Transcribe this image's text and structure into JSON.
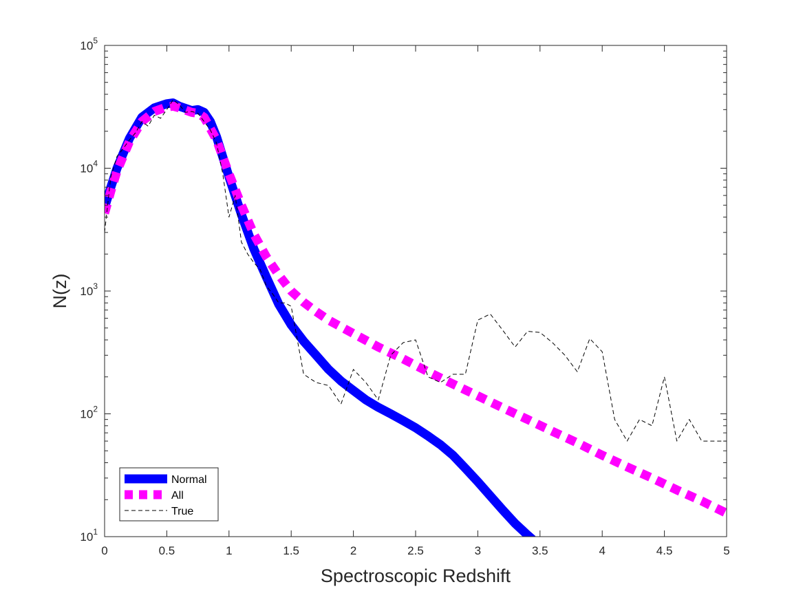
{
  "chart_data": {
    "type": "line",
    "title": "",
    "xlabel": "Spectroscopic Redshift",
    "ylabel": "N(z)",
    "xlim": [
      0,
      5
    ],
    "ylim": [
      10,
      100000
    ],
    "yscale": "log",
    "grid": false,
    "legend_position": "bottom-left",
    "x_ticks": [
      {
        "value": 0,
        "label": "0"
      },
      {
        "value": 0.5,
        "label": "0.5"
      },
      {
        "value": 1,
        "label": "1"
      },
      {
        "value": 1.5,
        "label": "1.5"
      },
      {
        "value": 2,
        "label": "2"
      },
      {
        "value": 2.5,
        "label": "2.5"
      },
      {
        "value": 3,
        "label": "3"
      },
      {
        "value": 3.5,
        "label": "3.5"
      },
      {
        "value": 4,
        "label": "4"
      },
      {
        "value": 4.5,
        "label": "4.5"
      },
      {
        "value": 5,
        "label": "5"
      }
    ],
    "y_ticks": [
      {
        "value": 10,
        "base": "10",
        "exp": "1"
      },
      {
        "value": 100,
        "base": "10",
        "exp": "2"
      },
      {
        "value": 1000,
        "base": "10",
        "exp": "3"
      },
      {
        "value": 10000,
        "base": "10",
        "exp": "4"
      },
      {
        "value": 100000,
        "base": "10",
        "exp": "5"
      }
    ],
    "series": [
      {
        "name": "Normal",
        "style": "solid-thick",
        "color": "#0000ff",
        "x": [
          0,
          0.05,
          0.1,
          0.2,
          0.3,
          0.4,
          0.5,
          0.55,
          0.6,
          0.7,
          0.75,
          0.8,
          0.85,
          0.9,
          1.0,
          1.1,
          1.2,
          1.3,
          1.4,
          1.5,
          1.6,
          1.7,
          1.8,
          1.9,
          2.0,
          2.1,
          2.2,
          2.3,
          2.4,
          2.5,
          2.6,
          2.7,
          2.8,
          2.9,
          3.0,
          3.1,
          3.2,
          3.3,
          3.4,
          3.44
        ],
        "y": [
          4800,
          7000,
          10000,
          17500,
          26000,
          31000,
          33500,
          34000,
          32000,
          29500,
          30000,
          28500,
          24000,
          18000,
          8500,
          4200,
          2200,
          1300,
          780,
          530,
          390,
          300,
          230,
          185,
          155,
          130,
          113,
          100,
          88,
          77,
          66,
          56,
          46,
          36,
          28,
          21.5,
          16.5,
          12.8,
          10.3,
          9.5
        ]
      },
      {
        "name": "All",
        "style": "dashed-thick",
        "color": "#ff00ff",
        "x": [
          0,
          0.05,
          0.1,
          0.2,
          0.3,
          0.4,
          0.5,
          0.55,
          0.6,
          0.7,
          0.75,
          0.8,
          0.9,
          1.0,
          1.1,
          1.2,
          1.3,
          1.4,
          1.5,
          1.6,
          1.7,
          1.8,
          2.0,
          2.2,
          2.4,
          2.6,
          2.8,
          3.0,
          3.2,
          3.4,
          3.6,
          3.8,
          4.0,
          4.2,
          4.4,
          4.6,
          4.8,
          5.0
        ],
        "y": [
          4300,
          6500,
          9500,
          16500,
          24000,
          29000,
          31500,
          32000,
          31000,
          28500,
          28000,
          26000,
          17000,
          9000,
          5000,
          2900,
          1900,
          1350,
          1000,
          810,
          680,
          580,
          450,
          350,
          280,
          220,
          175,
          140,
          112,
          90,
          72,
          58,
          46,
          37,
          30,
          24,
          19.5,
          15.5
        ]
      },
      {
        "name": "True",
        "style": "dashed-thin",
        "color": "#000000",
        "x": [
          0,
          0.05,
          0.1,
          0.15,
          0.2,
          0.25,
          0.3,
          0.35,
          0.4,
          0.45,
          0.5,
          0.55,
          0.6,
          0.65,
          0.7,
          0.75,
          0.8,
          0.85,
          0.9,
          0.95,
          1.0,
          1.05,
          1.1,
          1.15,
          1.2,
          1.25,
          1.3,
          1.35,
          1.4,
          1.45,
          1.5,
          1.6,
          1.7,
          1.8,
          1.9,
          2.0,
          2.1,
          2.2,
          2.3,
          2.4,
          2.5,
          2.6,
          2.7,
          2.8,
          2.9,
          3.0,
          3.1,
          3.2,
          3.3,
          3.4,
          3.5,
          3.6,
          3.7,
          3.8,
          3.9,
          4.0,
          4.1,
          4.2,
          4.3,
          4.4,
          4.5,
          4.6,
          4.7,
          4.8,
          4.9,
          5.0
        ],
        "y": [
          3000,
          8500,
          12500,
          14500,
          17000,
          19500,
          24000,
          22000,
          27000,
          25500,
          30000,
          36000,
          33000,
          28500,
          29000,
          28000,
          24000,
          20500,
          16000,
          9000,
          4000,
          6000,
          2500,
          2000,
          1700,
          1500,
          1100,
          950,
          800,
          800,
          750,
          210,
          180,
          170,
          120,
          230,
          180,
          130,
          300,
          380,
          400,
          200,
          180,
          210,
          210,
          580,
          650,
          480,
          350,
          470,
          460,
          380,
          300,
          220,
          410,
          320,
          90,
          60,
          90,
          80,
          200,
          60,
          90,
          60,
          60,
          60
        ]
      }
    ]
  },
  "legend": {
    "items": [
      {
        "label": "Normal",
        "color": "#0000ff"
      },
      {
        "label": "All",
        "color": "#ff00ff"
      },
      {
        "label": "True",
        "color": "#000000"
      }
    ]
  }
}
